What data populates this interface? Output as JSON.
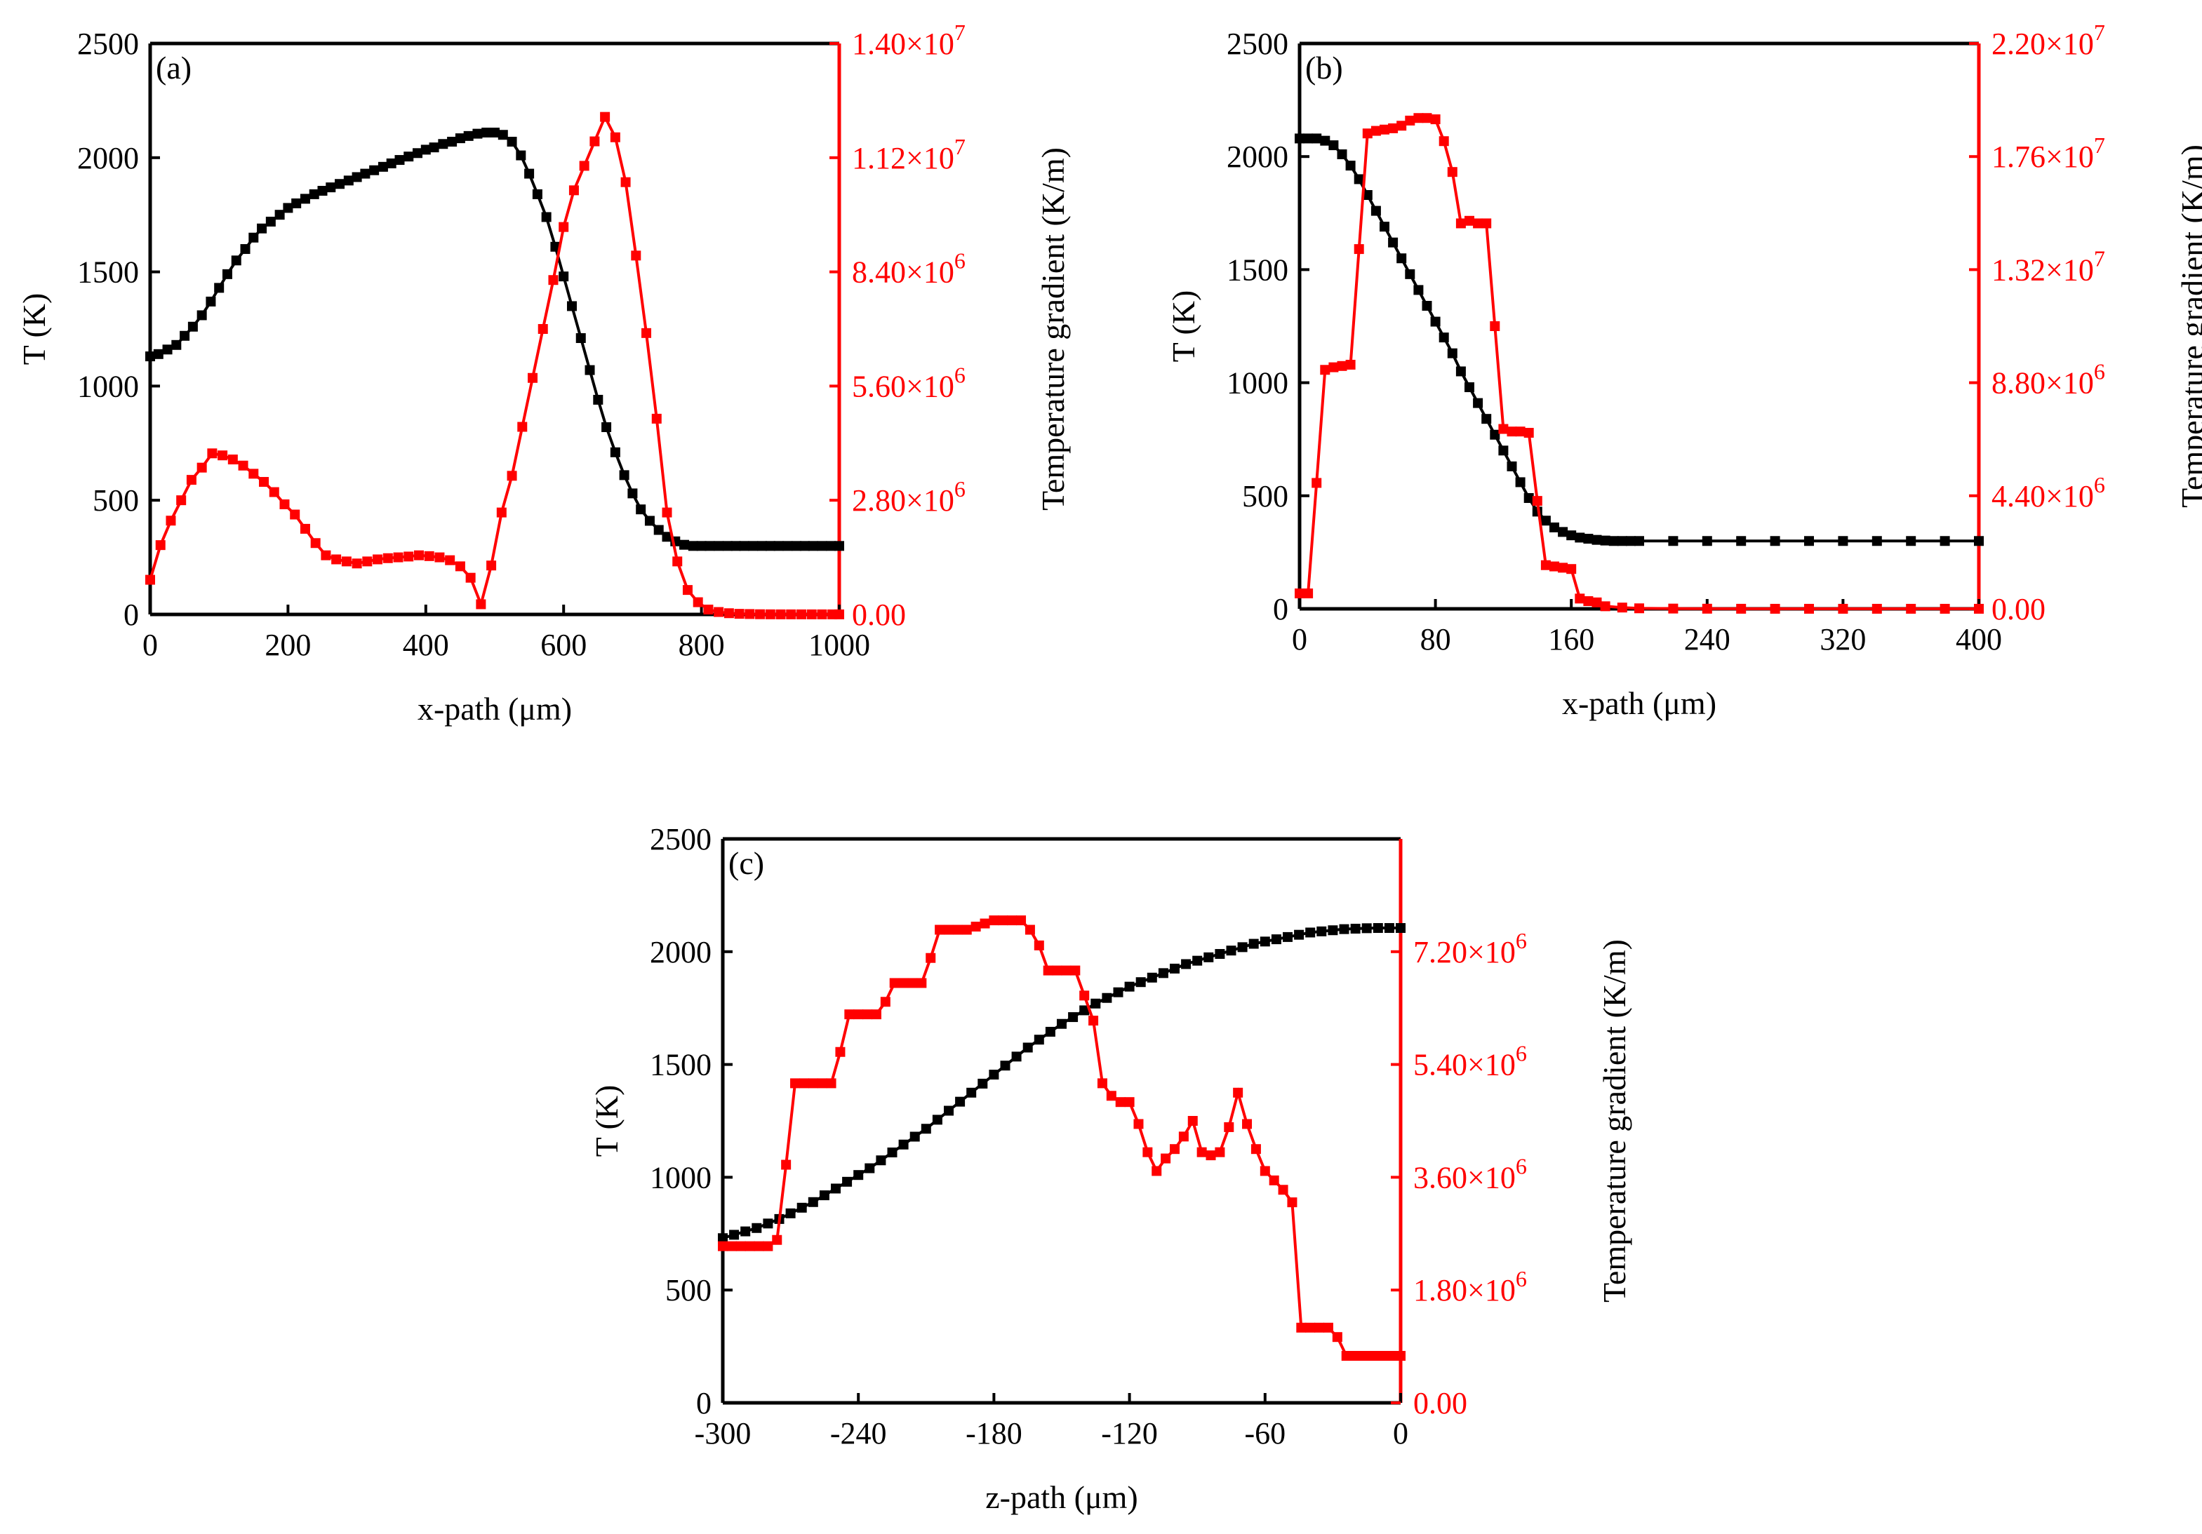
{
  "figure": {
    "panel_count": 3
  },
  "colors": {
    "temperature": "#000000",
    "gradient": "#ff0000",
    "axis": "#000000"
  },
  "chart_data": [
    {
      "type": "line",
      "panel_label": "(a)",
      "xlabel": "x-path (μm)",
      "ylabel_left": "T (K)",
      "ylabel_right": "Temperature gradient (K/m)",
      "xlim": [
        0,
        1000
      ],
      "ylim_left": [
        0,
        2500
      ],
      "ylim_right": [
        0,
        14000000
      ],
      "xticks": [
        0,
        200,
        400,
        600,
        800,
        1000
      ],
      "xtick_labels": [
        "0",
        "200",
        "400",
        "600",
        "800",
        "1000"
      ],
      "yticks_left": [
        0,
        500,
        1000,
        1500,
        2000,
        2500
      ],
      "ytick_labels_left": [
        "0",
        "500",
        "1000",
        "1500",
        "2000",
        "2500"
      ],
      "yticks_right": [
        0,
        2800000,
        5600000,
        8400000,
        11200000,
        14000000
      ],
      "ytick_labels_right": [
        {
          "base": "0.00",
          "exp": ""
        },
        {
          "base": "2.80×10",
          "exp": "6"
        },
        {
          "base": "5.60×10",
          "exp": "6"
        },
        {
          "base": "8.40×10",
          "exp": "6"
        },
        {
          "base": "1.12×10",
          "exp": "7"
        },
        {
          "base": "1.40×10",
          "exp": "7"
        }
      ],
      "series": [
        {
          "name": "Temperature",
          "axis": "left",
          "color": "#000000",
          "x": [
            0,
            12,
            25,
            38,
            50,
            62,
            75,
            88,
            100,
            112,
            125,
            138,
            150,
            162,
            175,
            188,
            200,
            212,
            225,
            238,
            250,
            262,
            275,
            288,
            300,
            312,
            325,
            338,
            350,
            362,
            375,
            388,
            400,
            412,
            425,
            438,
            450,
            462,
            475,
            488,
            500,
            512,
            525,
            538,
            550,
            562,
            575,
            588,
            600,
            612,
            625,
            638,
            650,
            662,
            675,
            688,
            700,
            712,
            725,
            738,
            750,
            762,
            775,
            788,
            800,
            812,
            825,
            838,
            850,
            862,
            875,
            888,
            900,
            912,
            925,
            938,
            950,
            962,
            975,
            988,
            1000
          ],
          "y": [
            1130,
            1140,
            1160,
            1180,
            1220,
            1260,
            1310,
            1370,
            1430,
            1490,
            1550,
            1600,
            1650,
            1690,
            1720,
            1750,
            1780,
            1800,
            1820,
            1840,
            1855,
            1870,
            1885,
            1900,
            1915,
            1930,
            1945,
            1960,
            1975,
            1990,
            2005,
            2020,
            2035,
            2045,
            2060,
            2070,
            2085,
            2095,
            2105,
            2110,
            2110,
            2100,
            2070,
            2010,
            1930,
            1840,
            1740,
            1610,
            1480,
            1350,
            1210,
            1070,
            940,
            820,
            710,
            610,
            530,
            460,
            410,
            370,
            340,
            320,
            305,
            300,
            300,
            300,
            300,
            300,
            300,
            300,
            300,
            300,
            300,
            300,
            300,
            300,
            300,
            300,
            300,
            300,
            300
          ]
        },
        {
          "name": "Temperature gradient",
          "axis": "right",
          "color": "#ff0000",
          "x": [
            0,
            15,
            30,
            45,
            60,
            75,
            90,
            105,
            120,
            135,
            150,
            165,
            180,
            195,
            210,
            225,
            240,
            255,
            270,
            285,
            300,
            315,
            330,
            345,
            360,
            375,
            390,
            405,
            420,
            435,
            450,
            465,
            480,
            495,
            510,
            525,
            540,
            555,
            570,
            585,
            600,
            615,
            630,
            645,
            660,
            675,
            690,
            705,
            720,
            735,
            750,
            765,
            780,
            795,
            810,
            825,
            840,
            855,
            870,
            885,
            900,
            915,
            930,
            945,
            960,
            975,
            990,
            1000
          ],
          "y": [
            850000,
            1700000,
            2300000,
            2800000,
            3300000,
            3600000,
            3950000,
            3900000,
            3800000,
            3650000,
            3450000,
            3250000,
            3000000,
            2700000,
            2450000,
            2100000,
            1750000,
            1450000,
            1350000,
            1300000,
            1250000,
            1300000,
            1350000,
            1380000,
            1400000,
            1420000,
            1450000,
            1430000,
            1400000,
            1330000,
            1180000,
            900000,
            250000,
            1200000,
            2500000,
            3400000,
            4600000,
            5800000,
            7000000,
            8200000,
            9500000,
            10400000,
            11000000,
            11600000,
            12200000,
            11700000,
            10600000,
            8800000,
            6900000,
            4800000,
            2500000,
            1300000,
            600000,
            300000,
            120000,
            60000,
            30000,
            15000,
            10000,
            5000,
            3000,
            2000,
            2000,
            2000,
            2000,
            2000,
            2000,
            2000
          ]
        }
      ]
    },
    {
      "type": "line",
      "panel_label": "(b)",
      "xlabel": "x-path (μm)",
      "ylabel_left": "T (K)",
      "ylabel_right": "Temperature gradient (K/m)",
      "xlim": [
        0,
        400
      ],
      "ylim_left": [
        0,
        2500
      ],
      "ylim_right": [
        0,
        22000000
      ],
      "xticks": [
        0,
        80,
        160,
        240,
        320,
        400
      ],
      "xtick_labels": [
        "0",
        "80",
        "160",
        "240",
        "320",
        "400"
      ],
      "yticks_left": [
        0,
        500,
        1000,
        1500,
        2000,
        2500
      ],
      "ytick_labels_left": [
        "0",
        "500",
        "1000",
        "1500",
        "2000",
        "2500"
      ],
      "yticks_right": [
        0,
        4400000,
        8800000,
        13200000,
        17600000,
        22000000
      ],
      "ytick_labels_right": [
        {
          "base": "0.00",
          "exp": ""
        },
        {
          "base": "4.40×10",
          "exp": "6"
        },
        {
          "base": "8.80×10",
          "exp": "6"
        },
        {
          "base": "1.32×10",
          "exp": "7"
        },
        {
          "base": "1.76×10",
          "exp": "7"
        },
        {
          "base": "2.20×10",
          "exp": "7"
        }
      ],
      "series": [
        {
          "name": "Temperature",
          "axis": "left",
          "color": "#000000",
          "x": [
            0,
            5,
            10,
            15,
            20,
            25,
            30,
            35,
            40,
            45,
            50,
            55,
            60,
            65,
            70,
            75,
            80,
            85,
            90,
            95,
            100,
            105,
            110,
            115,
            120,
            125,
            130,
            135,
            140,
            145,
            150,
            155,
            160,
            165,
            170,
            175,
            180,
            185,
            190,
            195,
            200,
            220,
            240,
            260,
            280,
            300,
            320,
            340,
            360,
            380,
            400
          ],
          "y": [
            2080,
            2080,
            2080,
            2070,
            2050,
            2010,
            1960,
            1900,
            1830,
            1760,
            1690,
            1620,
            1550,
            1480,
            1410,
            1340,
            1270,
            1200,
            1130,
            1050,
            980,
            910,
            840,
            770,
            700,
            630,
            560,
            490,
            430,
            390,
            360,
            340,
            325,
            315,
            310,
            305,
            302,
            300,
            300,
            300,
            300,
            300,
            300,
            300,
            300,
            300,
            300,
            300,
            300,
            300,
            300
          ]
        },
        {
          "name": "Temperature gradient",
          "axis": "right",
          "color": "#ff0000",
          "x": [
            0,
            5,
            10,
            15,
            20,
            25,
            30,
            35,
            40,
            45,
            50,
            55,
            60,
            65,
            70,
            75,
            80,
            85,
            90,
            95,
            100,
            105,
            110,
            115,
            120,
            125,
            130,
            135,
            140,
            145,
            150,
            155,
            160,
            165,
            170,
            175,
            180,
            190,
            200,
            220,
            240,
            260,
            280,
            300,
            320,
            340,
            360,
            380,
            400
          ],
          "y": [
            600000,
            600000,
            4900000,
            9300000,
            9400000,
            9450000,
            9500000,
            14000000,
            18500000,
            18600000,
            18650000,
            18700000,
            18800000,
            19000000,
            19100000,
            19100000,
            19050000,
            18200000,
            17000000,
            15000000,
            15100000,
            15000000,
            15000000,
            11000000,
            7000000,
            6900000,
            6900000,
            6850000,
            4200000,
            1700000,
            1650000,
            1600000,
            1550000,
            400000,
            300000,
            250000,
            100000,
            50000,
            20000,
            10000,
            5000,
            3000,
            2000,
            2000,
            2000,
            2000,
            2000,
            2000,
            2000
          ]
        }
      ]
    },
    {
      "type": "line",
      "panel_label": "(c)",
      "xlabel": "z-path (μm)",
      "ylabel_left": "T (K)",
      "ylabel_right": "Temperature gradient (K/m)",
      "xlim": [
        -300,
        0
      ],
      "ylim_left": [
        0,
        2500
      ],
      "ylim_right": [
        0,
        9000000
      ],
      "xticks": [
        -300,
        -240,
        -180,
        -120,
        -60,
        0
      ],
      "xtick_labels": [
        "-300",
        "-240",
        "-180",
        "-120",
        "-60",
        "0"
      ],
      "yticks_left": [
        0,
        500,
        1000,
        1500,
        2000,
        2500
      ],
      "ytick_labels_left": [
        "0",
        "500",
        "1000",
        "1500",
        "2000",
        "2500"
      ],
      "yticks_right": [
        0,
        1800000,
        3600000,
        5400000,
        7200000
      ],
      "ytick_labels_right": [
        {
          "base": "0.00",
          "exp": ""
        },
        {
          "base": "1.80×10",
          "exp": "6"
        },
        {
          "base": "3.60×10",
          "exp": "6"
        },
        {
          "base": "5.40×10",
          "exp": "6"
        },
        {
          "base": "7.20×10",
          "exp": "6"
        }
      ],
      "series": [
        {
          "name": "Temperature",
          "axis": "left",
          "color": "#000000",
          "x": [
            -300,
            -295,
            -290,
            -285,
            -280,
            -275,
            -270,
            -265,
            -260,
            -255,
            -250,
            -245,
            -240,
            -235,
            -230,
            -225,
            -220,
            -215,
            -210,
            -205,
            -200,
            -195,
            -190,
            -185,
            -180,
            -175,
            -170,
            -165,
            -160,
            -155,
            -150,
            -145,
            -140,
            -135,
            -130,
            -125,
            -120,
            -115,
            -110,
            -105,
            -100,
            -95,
            -90,
            -85,
            -80,
            -75,
            -70,
            -65,
            -60,
            -55,
            -50,
            -45,
            -40,
            -35,
            -30,
            -25,
            -20,
            -15,
            -10,
            -5,
            0
          ],
          "y": [
            730,
            745,
            760,
            775,
            795,
            815,
            840,
            865,
            890,
            920,
            950,
            980,
            1010,
            1040,
            1075,
            1110,
            1145,
            1180,
            1215,
            1255,
            1295,
            1335,
            1375,
            1415,
            1455,
            1495,
            1535,
            1575,
            1610,
            1645,
            1680,
            1710,
            1740,
            1770,
            1795,
            1820,
            1845,
            1865,
            1885,
            1905,
            1925,
            1945,
            1960,
            1975,
            1990,
            2005,
            2020,
            2035,
            2045,
            2055,
            2065,
            2075,
            2085,
            2090,
            2095,
            2100,
            2102,
            2104,
            2105,
            2105,
            2105
          ]
        },
        {
          "name": "Temperature gradient",
          "axis": "right",
          "color": "#ff0000",
          "x": [
            -300,
            -296,
            -292,
            -288,
            -284,
            -280,
            -276,
            -272,
            -268,
            -264,
            -260,
            -256,
            -252,
            -248,
            -244,
            -240,
            -236,
            -232,
            -228,
            -224,
            -220,
            -216,
            -212,
            -208,
            -204,
            -200,
            -196,
            -192,
            -188,
            -184,
            -180,
            -176,
            -172,
            -168,
            -164,
            -160,
            -156,
            -152,
            -148,
            -144,
            -140,
            -136,
            -132,
            -128,
            -124,
            -120,
            -116,
            -112,
            -108,
            -104,
            -100,
            -96,
            -92,
            -88,
            -84,
            -80,
            -76,
            -72,
            -68,
            -64,
            -60,
            -56,
            -52,
            -48,
            -44,
            -40,
            -36,
            -32,
            -28,
            -24,
            -20,
            -16,
            -12,
            -8,
            -4,
            0
          ],
          "y": [
            2500000,
            2500000,
            2500000,
            2500000,
            2500000,
            2500000,
            2600000,
            3800000,
            5100000,
            5100000,
            5100000,
            5100000,
            5100000,
            5600000,
            6200000,
            6200000,
            6200000,
            6200000,
            6400000,
            6700000,
            6700000,
            6700000,
            6700000,
            7100000,
            7550000,
            7550000,
            7550000,
            7550000,
            7600000,
            7650000,
            7700000,
            7700000,
            7700000,
            7700000,
            7550000,
            7300000,
            6900000,
            6900000,
            6900000,
            6900000,
            6500000,
            6100000,
            5100000,
            4900000,
            4800000,
            4800000,
            4450000,
            4000000,
            3700000,
            3900000,
            4050000,
            4250000,
            4500000,
            4000000,
            3950000,
            4000000,
            4400000,
            4950000,
            4450000,
            4050000,
            3700000,
            3550000,
            3400000,
            3200000,
            1200000,
            1200000,
            1200000,
            1200000,
            1050000,
            750000,
            750000,
            750000,
            750000,
            750000,
            750000,
            750000
          ]
        }
      ]
    }
  ]
}
